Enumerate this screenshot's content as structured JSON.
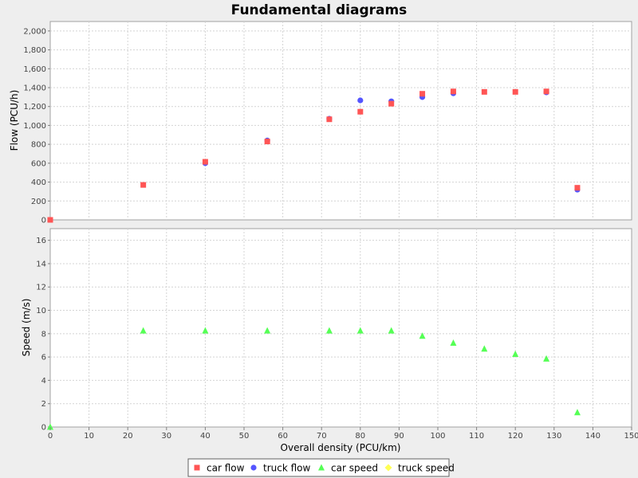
{
  "chart_data": {
    "title": "Fundamental diagrams",
    "type": "scatter",
    "xlabel": "Overall density (PCU/km)",
    "xlim": [
      0,
      150
    ],
    "x_ticks": [
      0,
      10,
      20,
      30,
      40,
      50,
      60,
      70,
      80,
      90,
      100,
      110,
      120,
      130,
      140,
      150
    ],
    "grid": true,
    "legend_position": "bottom",
    "panels": [
      {
        "name": "flow",
        "ylabel": "Flow (PCU/h)",
        "ylim": [
          0,
          2100
        ],
        "y_ticks": [
          0,
          200,
          400,
          600,
          800,
          1000,
          1200,
          1400,
          1600,
          1800,
          2000
        ],
        "y_tick_labels": [
          "0",
          "200",
          "400",
          "600",
          "800",
          "1,000",
          "1,200",
          "1,400",
          "1,600",
          "1,800",
          "2,000"
        ],
        "series": [
          {
            "name": "truck flow",
            "marker": "circle",
            "color": "#5555ff",
            "x": [
              56,
              72,
              80,
              88,
              96,
              104,
              128,
              136,
              40
            ],
            "y": [
              840,
              1070,
              1265,
              1255,
              1300,
              1340,
              1350,
              320,
              600
            ]
          },
          {
            "name": "car flow",
            "marker": "square",
            "color": "#ff5555",
            "x": [
              0,
              24,
              40,
              56,
              72,
              80,
              88,
              96,
              104,
              112,
              120,
              128,
              136
            ],
            "y": [
              0,
              370,
              615,
              830,
              1065,
              1145,
              1230,
              1335,
              1360,
              1355,
              1355,
              1360,
              340
            ]
          }
        ]
      },
      {
        "name": "speed",
        "ylabel": "Speed (m/s)",
        "ylim": [
          0,
          17
        ],
        "y_ticks": [
          0,
          2,
          4,
          6,
          8,
          10,
          12,
          14,
          16
        ],
        "y_tick_labels": [
          "0",
          "2",
          "4",
          "6",
          "8",
          "10",
          "12",
          "14",
          "16"
        ],
        "series": [
          {
            "name": "car speed",
            "marker": "triangle",
            "color": "#55ff55",
            "x": [
              0,
              24,
              40,
              56,
              72,
              80,
              88,
              96,
              104,
              112,
              120,
              128,
              136
            ],
            "y": [
              0,
              8.25,
              8.25,
              8.25,
              8.25,
              8.25,
              8.25,
              7.8,
              7.2,
              6.7,
              6.25,
              5.85,
              1.25
            ]
          }
        ]
      }
    ],
    "legend": [
      {
        "label": "car flow",
        "marker": "square",
        "color": "#ff5555"
      },
      {
        "label": "truck flow",
        "marker": "circle",
        "color": "#5555ff"
      },
      {
        "label": "car speed",
        "marker": "triangle",
        "color": "#55ff55"
      },
      {
        "label": "truck speed",
        "marker": "diamond",
        "color": "#ffff55"
      }
    ]
  }
}
